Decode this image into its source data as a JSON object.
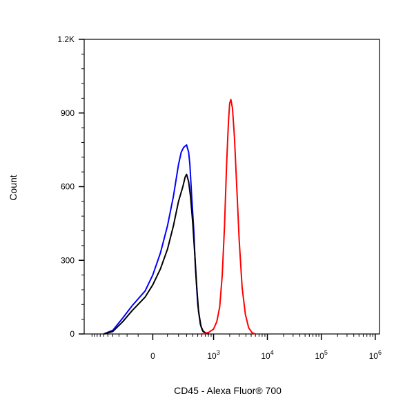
{
  "chart_data": {
    "type": "line",
    "title": "",
    "xlabel": "CD45 - Alexa Fluor® 700",
    "ylabel": "Count",
    "xscale": "biexponential",
    "x_ticks": [
      {
        "value": 0,
        "base": "0",
        "exp": ""
      },
      {
        "value": 1000,
        "base": "10",
        "exp": "3"
      },
      {
        "value": 10000,
        "base": "10",
        "exp": "4"
      },
      {
        "value": 100000,
        "base": "10",
        "exp": "5"
      },
      {
        "value": 1000000,
        "base": "10",
        "exp": "6"
      }
    ],
    "y_ticks": [
      {
        "value": 0,
        "label": "0"
      },
      {
        "value": 300,
        "label": "300"
      },
      {
        "value": 600,
        "label": "600"
      },
      {
        "value": 900,
        "label": "900"
      },
      {
        "value": 1200,
        "label": "1.2K"
      }
    ],
    "ylim": [
      0,
      1200
    ],
    "grid": false,
    "legend": "none",
    "series": [
      {
        "color": "#0000ff",
        "x": [
          -600,
          -400,
          -250,
          -150,
          -50,
          0,
          50,
          100,
          150,
          200,
          230,
          260,
          300,
          330,
          350,
          380,
          420,
          450,
          500,
          560,
          620,
          720,
          820
        ],
        "y": [
          0,
          15,
          65,
          115,
          175,
          240,
          330,
          440,
          560,
          690,
          740,
          760,
          770,
          740,
          690,
          560,
          420,
          270,
          120,
          40,
          12,
          3,
          0
        ]
      },
      {
        "color": "#000000",
        "x": [
          -600,
          -400,
          -250,
          -150,
          -50,
          0,
          50,
          100,
          150,
          200,
          250,
          280,
          300,
          330,
          360,
          400,
          440,
          480,
          520,
          580,
          640,
          720,
          820
        ],
        "y": [
          0,
          10,
          50,
          95,
          150,
          200,
          265,
          345,
          440,
          540,
          600,
          640,
          650,
          620,
          560,
          450,
          320,
          190,
          90,
          30,
          10,
          3,
          0
        ]
      },
      {
        "color": "#ff0000",
        "x": [
          600,
          800,
          1000,
          1150,
          1300,
          1450,
          1600,
          1750,
          1900,
          2000,
          2100,
          2250,
          2450,
          2700,
          3000,
          3400,
          3900,
          4500,
          5200,
          6000
        ],
        "y": [
          0,
          6,
          20,
          50,
          110,
          240,
          440,
          690,
          870,
          940,
          955,
          920,
          800,
          600,
          380,
          190,
          80,
          25,
          5,
          0
        ]
      }
    ]
  }
}
